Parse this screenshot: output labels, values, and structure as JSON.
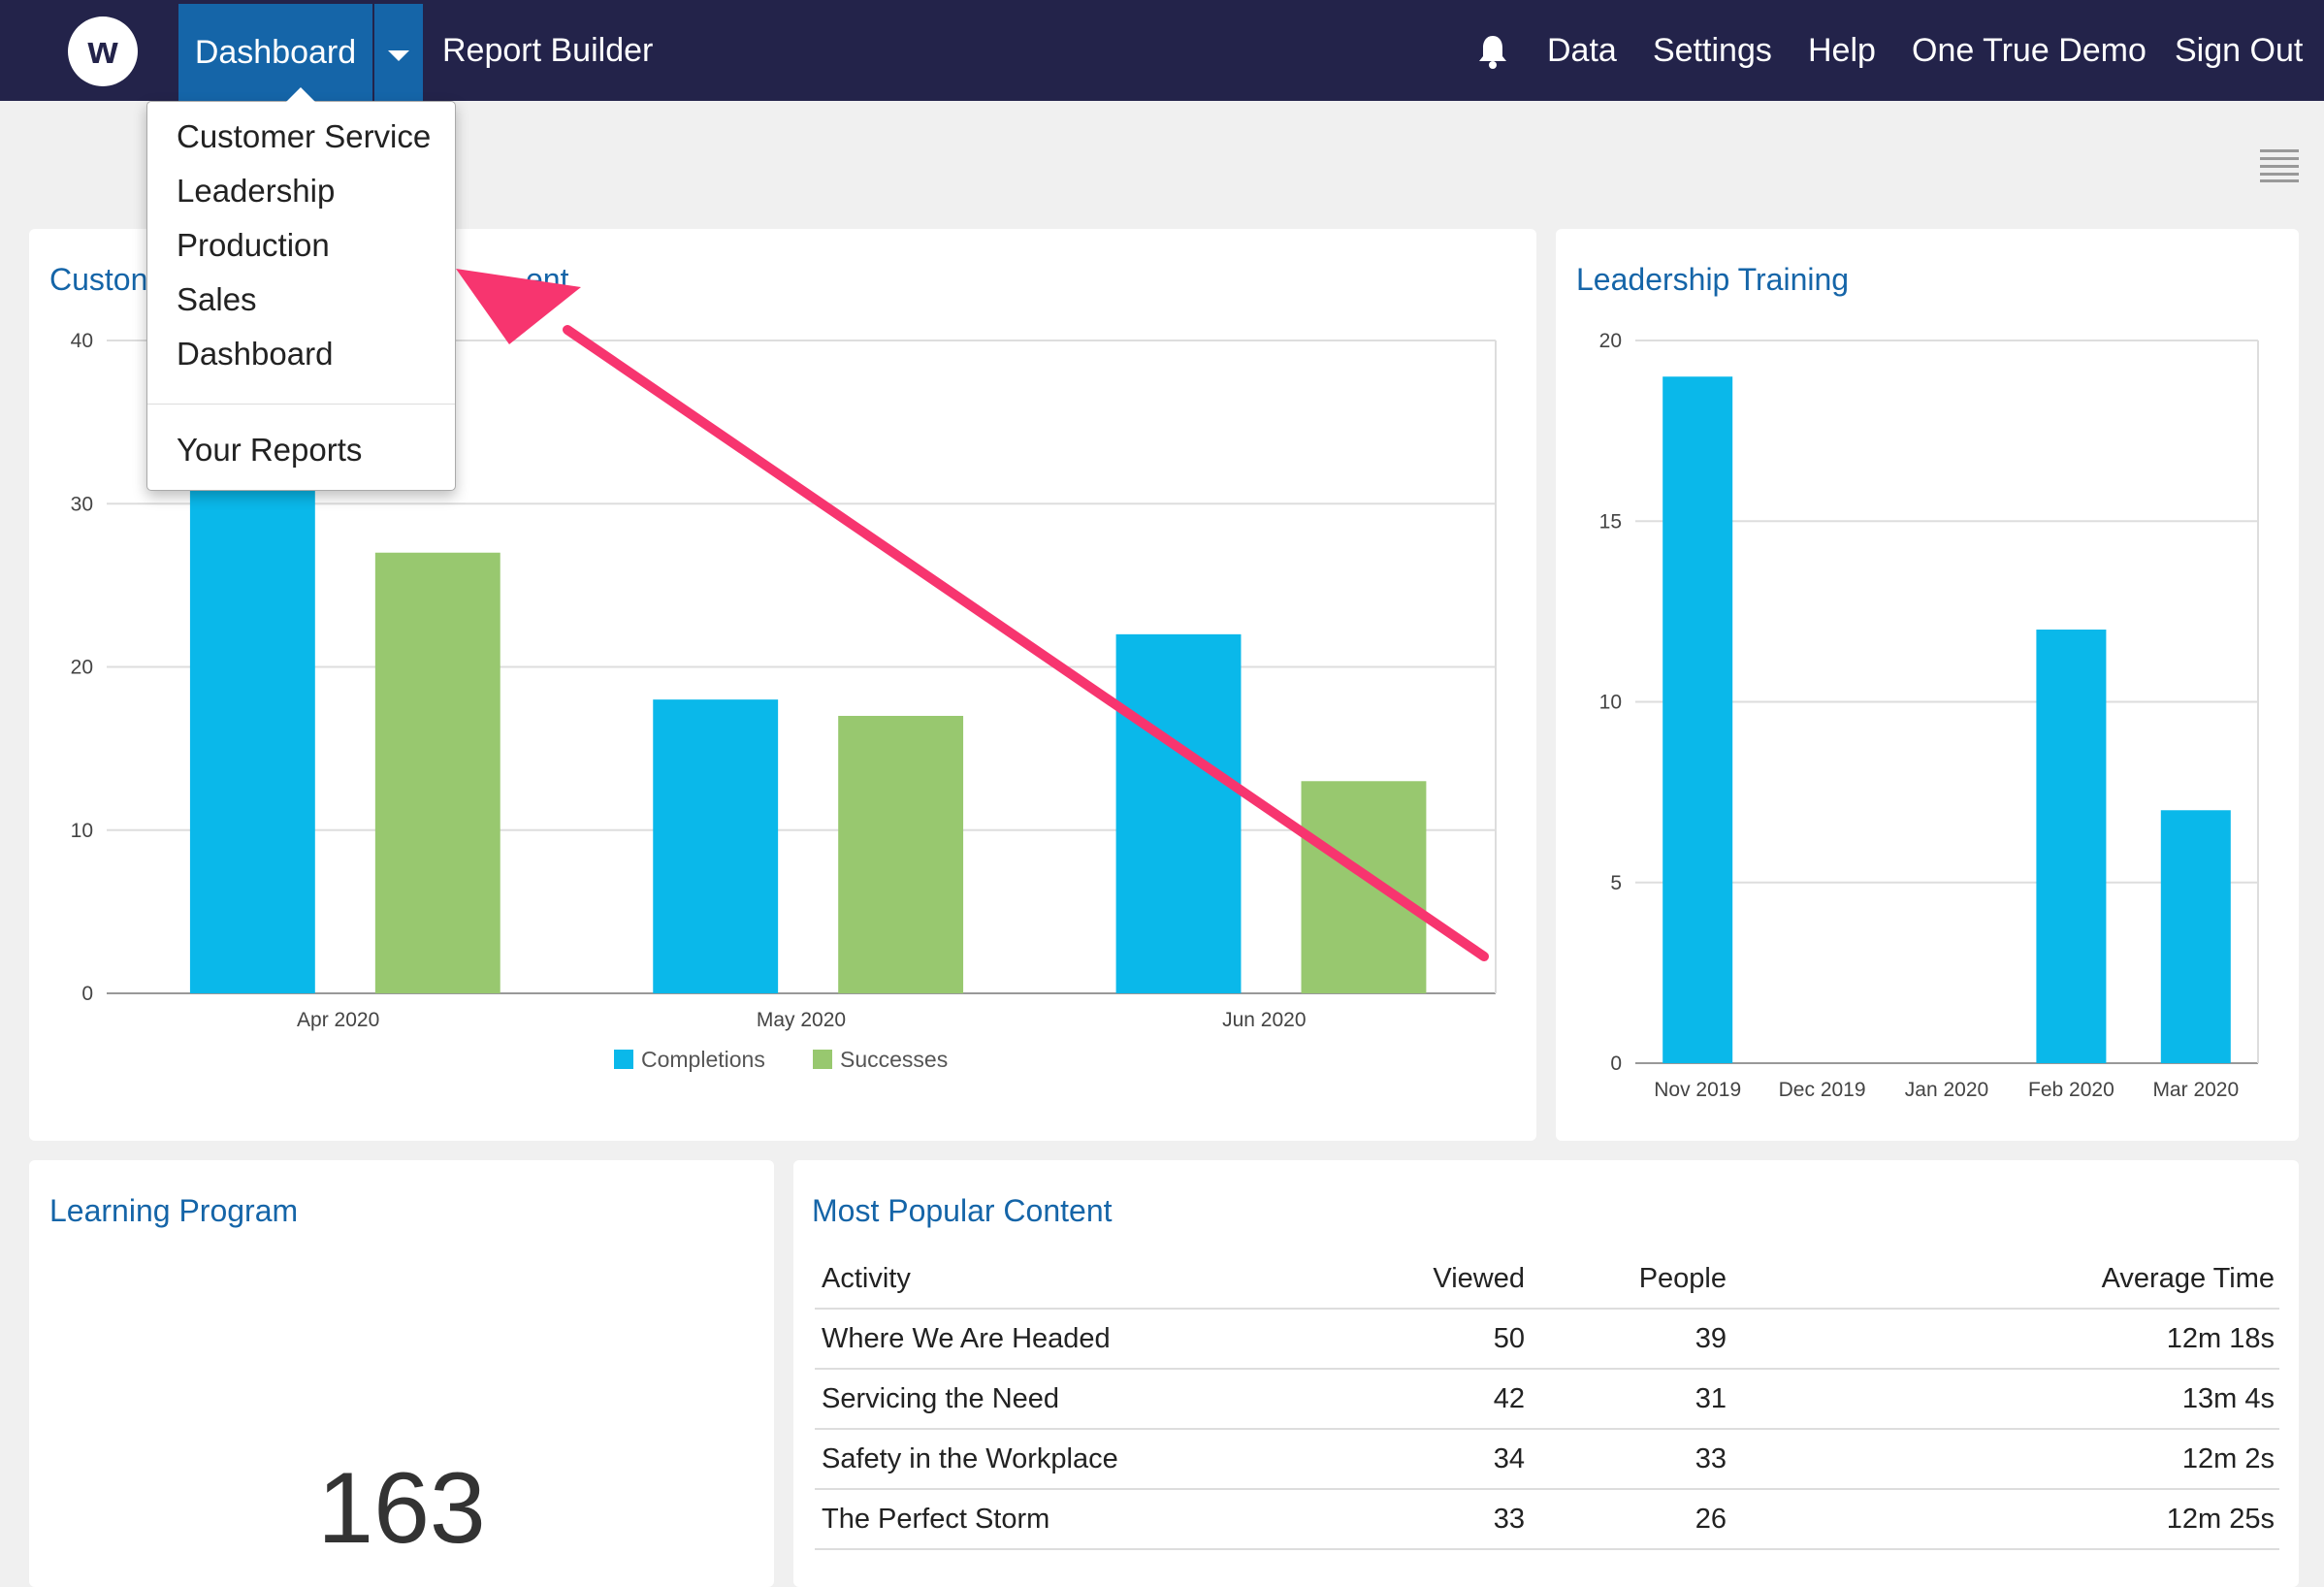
{
  "nav": {
    "logo": "w",
    "dashboard_label": "Dashboard",
    "report_builder_label": "Report Builder",
    "right_links": [
      "Data",
      "Settings",
      "Help",
      "One True Demo",
      "Sign Out"
    ]
  },
  "dropdown": {
    "items": [
      "Customer Service",
      "Leadership",
      "Production",
      "Sales",
      "Dashboard"
    ],
    "your_reports": "Your Reports"
  },
  "colors": {
    "nav_bg": "#23234a",
    "accent": "#1565a8",
    "completions": "#0ab8ea",
    "successes": "#98c86f",
    "annotation_arrow": "#f7356f"
  },
  "panels": {
    "customer_service": {
      "title_left": "Custon",
      "title_right": "ent"
    },
    "leadership": {
      "title": "Leadership Training"
    },
    "learning": {
      "title": "Learning Program",
      "value": "163"
    },
    "popular": {
      "title": "Most Popular Content",
      "headers": [
        "Activity",
        "Viewed",
        "People",
        "Average Time"
      ],
      "rows": [
        [
          "Where We Are Headed",
          "50",
          "39",
          "12m 18s"
        ],
        [
          "Servicing the Need",
          "42",
          "31",
          "13m 4s"
        ],
        [
          "Safety in the Workplace",
          "34",
          "33",
          "12m 2s"
        ],
        [
          "The Perfect Storm",
          "33",
          "26",
          "12m 25s"
        ]
      ]
    }
  },
  "chart_data": [
    {
      "type": "bar",
      "categories": [
        "Apr 2020",
        "May 2020",
        "Jun 2020"
      ],
      "series": [
        {
          "name": "Completions",
          "values": [
            31,
            18,
            22
          ]
        },
        {
          "name": "Successes",
          "values": [
            27,
            17,
            13
          ]
        }
      ],
      "ylim": [
        0,
        40
      ],
      "yticks": [
        0,
        10,
        20,
        30,
        40
      ],
      "grid": true,
      "legend": "bottom"
    },
    {
      "type": "bar",
      "categories": [
        "Nov 2019",
        "Dec 2019",
        "Jan 2020",
        "Feb 2020",
        "Mar 2020"
      ],
      "values": [
        19,
        0,
        0,
        12,
        7
      ],
      "ylim": [
        0,
        20
      ],
      "yticks": [
        0,
        5,
        10,
        15,
        20
      ],
      "grid": true
    }
  ]
}
